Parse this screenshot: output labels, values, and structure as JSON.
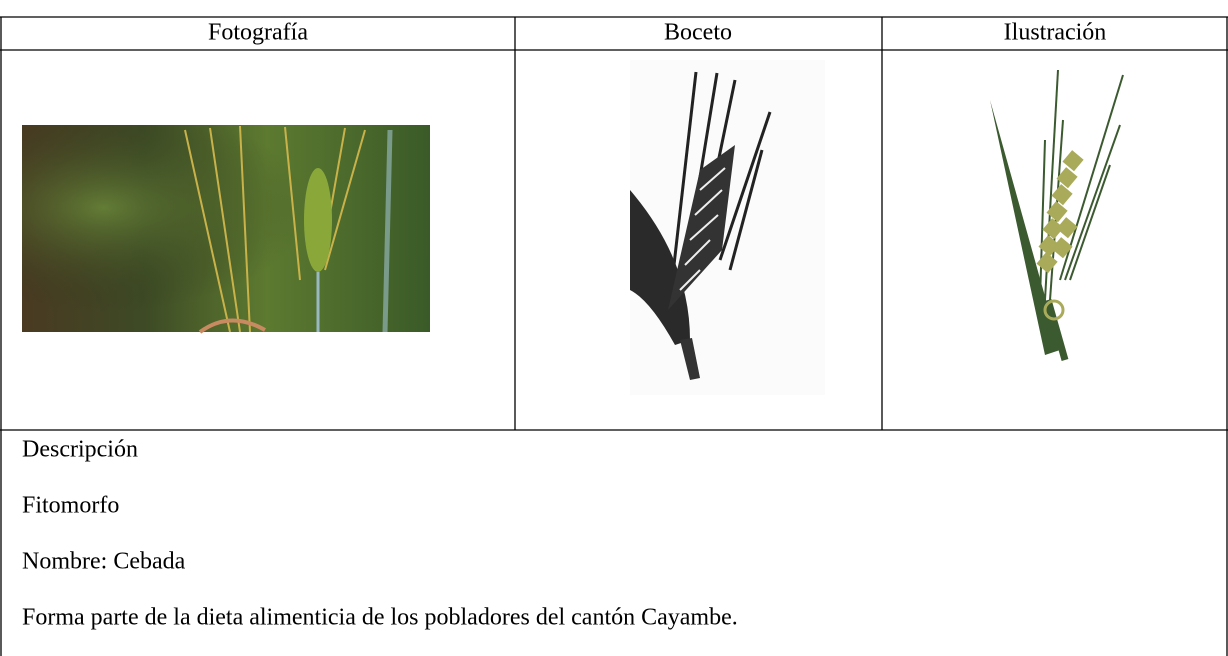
{
  "table": {
    "headers": [
      "Fotografía",
      "Boceto",
      "Ilustración"
    ],
    "description": [
      "Descripción",
      "Fitomorfo",
      "Nombre: Cebada",
      "Forma parte de la dieta alimenticia de los pobladores del cantón Cayambe."
    ]
  }
}
